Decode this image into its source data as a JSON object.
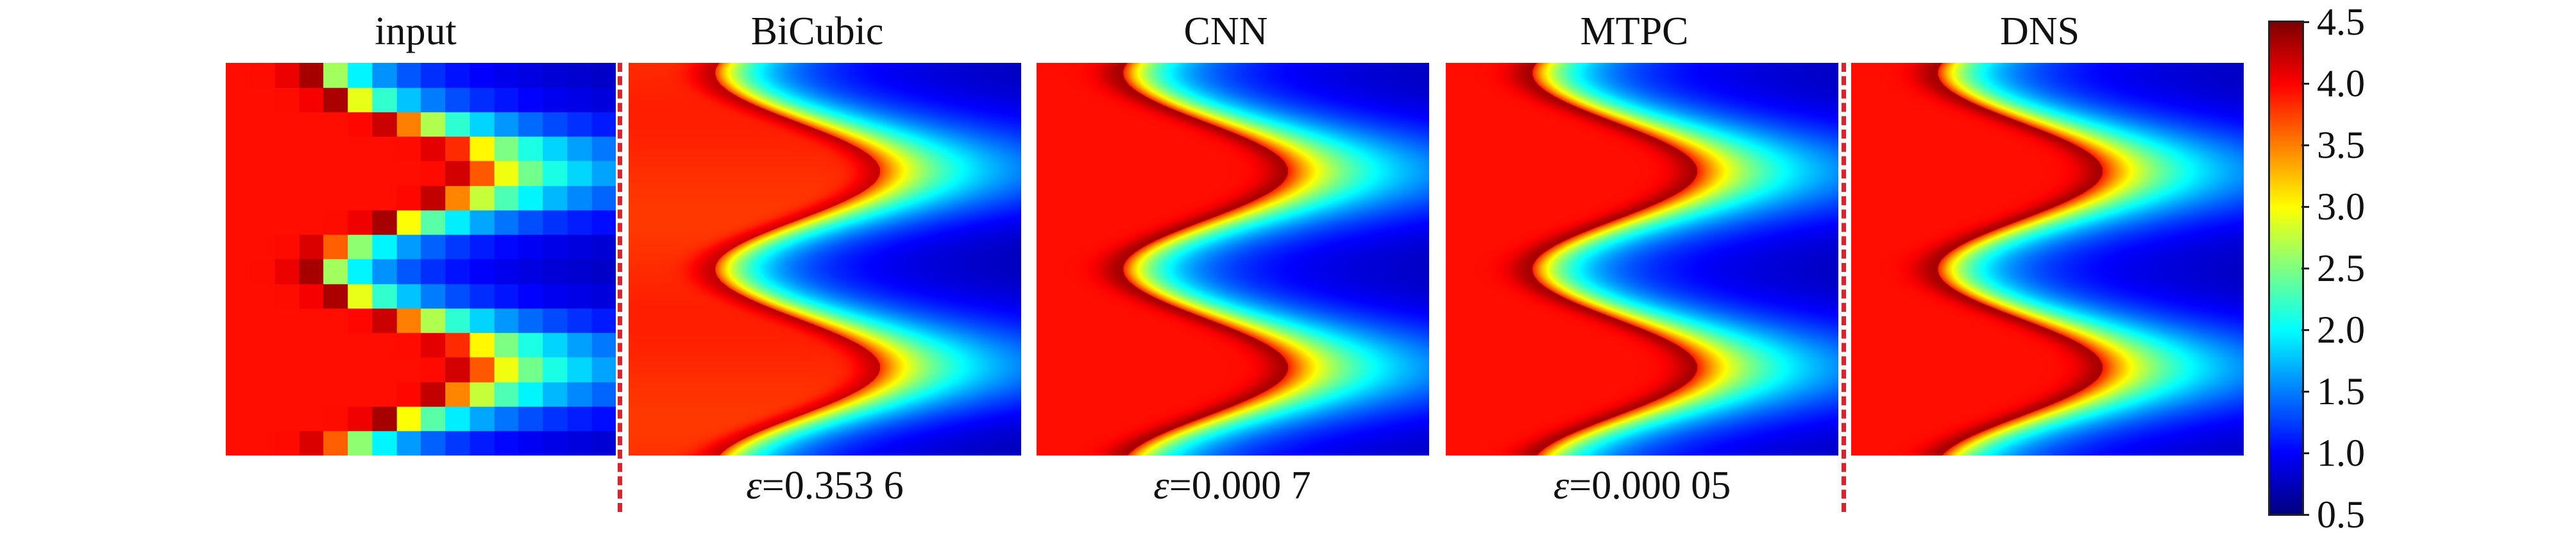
{
  "chart_data": {
    "type": "heatmap",
    "panels": [
      {
        "title": "input",
        "error_label": "",
        "kind": "coarse"
      },
      {
        "title": "BiCubic",
        "error_label": "ε=0.353 6",
        "kind": "bicubic"
      },
      {
        "title": "CNN",
        "error_label": "ε=0.000 7",
        "kind": "fine"
      },
      {
        "title": "MTPC",
        "error_label": "ε=0.000 05",
        "kind": "fine"
      },
      {
        "title": "DNS",
        "error_label": "",
        "kind": "fine"
      }
    ],
    "colorbar": {
      "min": 0.5,
      "max": 4.5,
      "ticks": [
        "4.5",
        "4.0",
        "3.5",
        "3.0",
        "2.5",
        "2.0",
        "1.5",
        "1.0",
        "0.5"
      ],
      "colormap": "jet"
    },
    "divider_color": "#e0202a"
  }
}
